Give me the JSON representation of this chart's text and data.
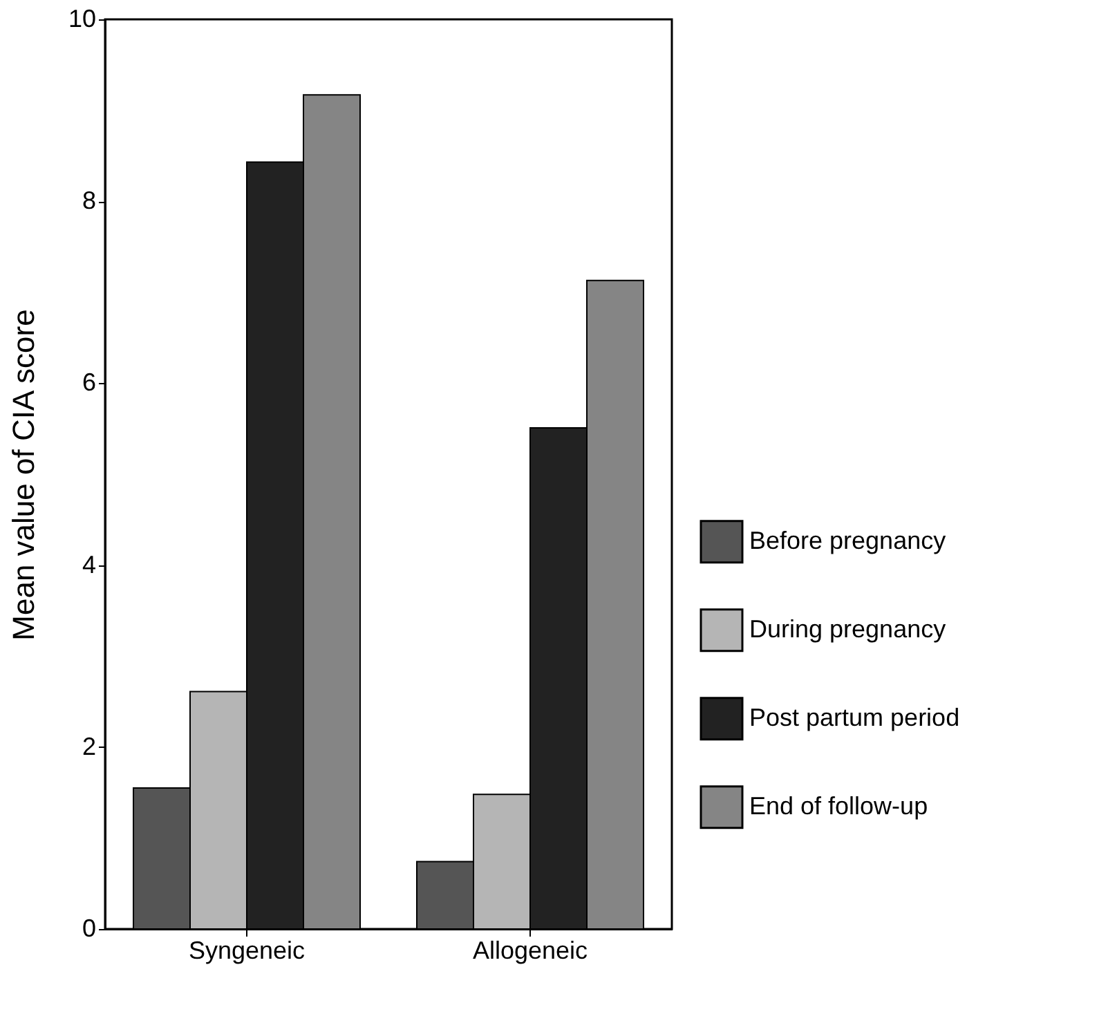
{
  "chart_data": {
    "type": "bar",
    "ylabel": "Mean value of CIA score",
    "categories": [
      "Syngeneic",
      "Allogeneic"
    ],
    "series": [
      {
        "name": "Before pregnancy",
        "color": "#555555",
        "values": [
          1.55,
          0.74
        ]
      },
      {
        "name": "During pregnancy",
        "color": "#b5b5b5",
        "values": [
          2.61,
          1.48
        ]
      },
      {
        "name": "Post partum period",
        "color": "#222222",
        "values": [
          8.43,
          5.51
        ]
      },
      {
        "name": "End of follow-up",
        "color": "#858585",
        "values": [
          9.17,
          7.13
        ]
      }
    ],
    "ylim": [
      0,
      10
    ],
    "yticks": [
      0,
      2,
      4,
      6,
      8,
      10
    ],
    "grid": false,
    "legend": "right"
  }
}
